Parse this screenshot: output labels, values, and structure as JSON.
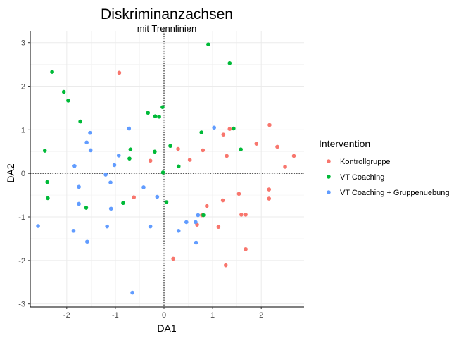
{
  "chart_data": {
    "type": "scatter",
    "title": "Diskriminanzachsen",
    "subtitle": "mit Trennlinien",
    "xlabel": "DA1",
    "ylabel": "DA2",
    "xlim": [
      -2.75,
      2.88
    ],
    "ylim": [
      -3.07,
      3.27
    ],
    "xticks": [
      -2,
      -1,
      0,
      1,
      2
    ],
    "yticks": [
      -3,
      -2,
      -1,
      0,
      1,
      2,
      3
    ],
    "grid": true,
    "reference_lines": {
      "x": 0,
      "y": 0,
      "style": "dotted"
    },
    "legend": {
      "title": "Intervention",
      "position": "right"
    },
    "series": [
      {
        "name": "Kontrollgruppe",
        "color": "#F8766D",
        "points": [
          [
            -0.92,
            2.31
          ],
          [
            -0.28,
            0.29
          ],
          [
            -0.62,
            -0.55
          ],
          [
            0.29,
            0.56
          ],
          [
            0.53,
            0.31
          ],
          [
            0.8,
            0.53
          ],
          [
            1.22,
            0.89
          ],
          [
            1.29,
            0.4
          ],
          [
            1.35,
            1.02
          ],
          [
            1.9,
            0.68
          ],
          [
            2.17,
            1.11
          ],
          [
            2.33,
            0.61
          ],
          [
            2.49,
            0.15
          ],
          [
            2.67,
            0.4
          ],
          [
            1.54,
            -0.47
          ],
          [
            1.59,
            -0.95
          ],
          [
            1.68,
            -0.95
          ],
          [
            2.16,
            -0.37
          ],
          [
            2.16,
            -0.58
          ],
          [
            1.21,
            -0.62
          ],
          [
            0.88,
            -0.75
          ],
          [
            0.78,
            -0.96
          ],
          [
            0.68,
            -1.18
          ],
          [
            1.12,
            -1.23
          ],
          [
            1.68,
            -1.74
          ],
          [
            0.19,
            -1.96
          ],
          [
            1.27,
            -2.11
          ]
        ]
      },
      {
        "name": "VT Coaching",
        "color": "#00BA38",
        "points": [
          [
            -2.3,
            2.33
          ],
          [
            -2.06,
            1.87
          ],
          [
            -1.97,
            1.67
          ],
          [
            -1.72,
            1.19
          ],
          [
            -2.45,
            0.52
          ],
          [
            -2.4,
            -0.2
          ],
          [
            -2.39,
            -0.57
          ],
          [
            -1.6,
            -0.79
          ],
          [
            -0.84,
            -0.68
          ],
          [
            -0.69,
            0.55
          ],
          [
            -0.71,
            0.34
          ],
          [
            -0.33,
            1.39
          ],
          [
            -0.18,
            1.31
          ],
          [
            -0.1,
            1.3
          ],
          [
            -0.03,
            1.52
          ],
          [
            -0.19,
            0.5
          ],
          [
            -0.02,
            0.02
          ],
          [
            0.13,
            0.63
          ],
          [
            0.3,
            0.16
          ],
          [
            0.91,
            2.96
          ],
          [
            1.35,
            2.53
          ],
          [
            0.77,
            0.94
          ],
          [
            1.43,
            1.03
          ],
          [
            1.58,
            0.55
          ],
          [
            0.05,
            -0.66
          ],
          [
            0.81,
            -0.96
          ]
        ]
      },
      {
        "name": "VT Coaching + Gruppenuebung",
        "color": "#619CFF",
        "points": [
          [
            -1.52,
            0.93
          ],
          [
            -1.59,
            0.71
          ],
          [
            -1.51,
            0.53
          ],
          [
            -0.72,
            1.03
          ],
          [
            -0.93,
            0.41
          ],
          [
            -1.02,
            0.19
          ],
          [
            -1.84,
            0.17
          ],
          [
            -1.2,
            -0.03
          ],
          [
            -1.1,
            -0.21
          ],
          [
            -1.75,
            -0.31
          ],
          [
            -0.42,
            -0.32
          ],
          [
            -0.14,
            -0.54
          ],
          [
            -1.75,
            -0.7
          ],
          [
            -1.09,
            -0.81
          ],
          [
            -2.59,
            -1.21
          ],
          [
            -1.86,
            -1.32
          ],
          [
            -1.17,
            -1.22
          ],
          [
            -0.28,
            -1.22
          ],
          [
            -1.58,
            -1.57
          ],
          [
            0.46,
            -1.12
          ],
          [
            0.65,
            -1.12
          ],
          [
            0.7,
            -0.96
          ],
          [
            0.3,
            -1.32
          ],
          [
            0.66,
            -1.59
          ],
          [
            -0.65,
            -2.74
          ],
          [
            1.03,
            1.05
          ]
        ]
      }
    ]
  }
}
